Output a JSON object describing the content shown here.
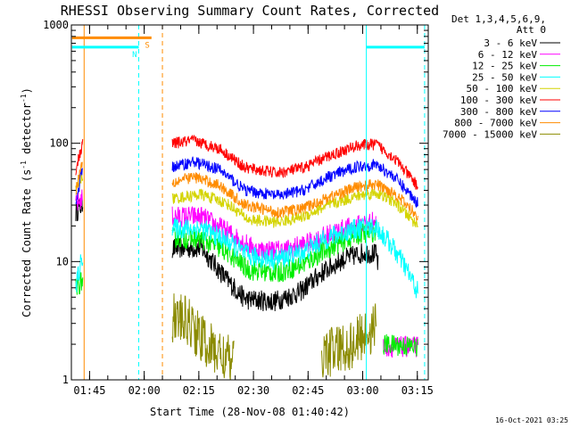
{
  "chart_data": {
    "type": "line",
    "title": "RHESSI Observing Summary Count Rates, Corrected",
    "xlabel": "Start Time (28-Nov-08 01:40:42)",
    "ylabel": "Corrected Count Rate (s",
    "ylabel_sup1": "-1",
    "ylabel_mid": " detector",
    "ylabel_sup2": "-1",
    "ylabel_end": ")",
    "y_scale": "log",
    "ylim": [
      1,
      1000
    ],
    "y_ticks": [
      {
        "value": 1,
        "label": "1"
      },
      {
        "value": 10,
        "label": "10"
      },
      {
        "value": 100,
        "label": "100"
      },
      {
        "value": 1000,
        "label": "1000"
      }
    ],
    "x_units": "minutes after 01:40:42",
    "xlim": [
      -0.7,
      97.3
    ],
    "x_ticks": [
      {
        "value": 4.3,
        "label": "01:45"
      },
      {
        "value": 19.3,
        "label": "02:00"
      },
      {
        "value": 34.3,
        "label": "02:15"
      },
      {
        "value": 49.3,
        "label": "02:30"
      },
      {
        "value": 64.3,
        "label": "02:45"
      },
      {
        "value": 79.3,
        "label": "03:00"
      },
      {
        "value": 94.3,
        "label": "03:15"
      }
    ],
    "legend_header": [
      "Det 1,3,4,5,6,9,",
      "Att 0"
    ],
    "legend_placement": "right",
    "series": [
      {
        "name": "3 - 6 keV",
        "color": "#000000",
        "segments": [
          [
            [
              0.5,
              26
            ],
            [
              2.5,
              31
            ]
          ],
          [
            [
              27,
              13
            ],
            [
              35,
              13
            ],
            [
              42,
              7
            ],
            [
              47,
              4.8
            ],
            [
              55,
              4.6
            ],
            [
              62,
              5.5
            ],
            [
              68,
              8
            ],
            [
              74,
              10.5
            ],
            [
              80,
              12
            ],
            [
              83,
              11.5
            ],
            [
              83.6,
              9
            ]
          ]
        ]
      },
      {
        "name": "6 - 12 keV",
        "color": "#ff00ff",
        "segments": [
          [
            [
              0.5,
              30
            ],
            [
              2.5,
              35
            ]
          ],
          [
            [
              27,
              24
            ],
            [
              35,
              24
            ],
            [
              42,
              18
            ],
            [
              50,
              12.5
            ],
            [
              58,
              12.5
            ],
            [
              65,
              14.5
            ],
            [
              72,
              18
            ],
            [
              80,
              21
            ],
            [
              83,
              22
            ]
          ],
          [
            [
              85,
              1.9
            ],
            [
              94.5,
              1.9
            ]
          ]
        ]
      },
      {
        "name": "12 - 25 keV",
        "color": "#00ee00",
        "segments": [
          [
            [
              0.5,
              6
            ],
            [
              2.5,
              7
            ]
          ],
          [
            [
              27,
              16
            ],
            [
              35,
              15.5
            ],
            [
              42,
              12
            ],
            [
              48,
              8.5
            ],
            [
              56,
              8
            ],
            [
              63,
              9.5
            ],
            [
              70,
              13
            ],
            [
              78,
              17
            ],
            [
              83,
              18
            ]
          ],
          [
            [
              85,
              2.0
            ],
            [
              94.5,
              1.9
            ]
          ]
        ]
      },
      {
        "name": "25 - 50 keV",
        "color": "#00ffff",
        "segments": [
          [
            [
              0.5,
              6
            ],
            [
              2.5,
              12
            ]
          ],
          [
            [
              27,
              19
            ],
            [
              35,
              19
            ],
            [
              42,
              15
            ],
            [
              48,
              11
            ],
            [
              56,
              10.5
            ],
            [
              63,
              12
            ],
            [
              70,
              16
            ],
            [
              78,
              19
            ],
            [
              83,
              19.5
            ],
            [
              87,
              14
            ],
            [
              91,
              9
            ],
            [
              94.5,
              5.5
            ]
          ]
        ]
      },
      {
        "name": "50 - 100 keV",
        "color": "#d4d400",
        "segments": [
          [
            [
              0.5,
              40
            ],
            [
              2.5,
              55
            ]
          ],
          [
            [
              27,
              34
            ],
            [
              35,
              37
            ],
            [
              42,
              31
            ],
            [
              48,
              22.5
            ],
            [
              56,
              21.5
            ],
            [
              63,
              24
            ],
            [
              70,
              30
            ],
            [
              78,
              36
            ],
            [
              83,
              38
            ],
            [
              88,
              32
            ],
            [
              94.5,
              20
            ]
          ]
        ]
      },
      {
        "name": "100 - 300 keV",
        "color": "#ff0000",
        "segments": [
          [
            [
              0.5,
              60
            ],
            [
              2.5,
              100
            ]
          ],
          [
            [
              27,
              100
            ],
            [
              33,
              105
            ],
            [
              40,
              90
            ],
            [
              47,
              62
            ],
            [
              56,
              56
            ],
            [
              63,
              62
            ],
            [
              70,
              78
            ],
            [
              78,
              96
            ],
            [
              83,
              98
            ],
            [
              88,
              75
            ],
            [
              94.5,
              43
            ]
          ]
        ]
      },
      {
        "name": "300 - 800 keV",
        "color": "#0000ff",
        "segments": [
          [
            [
              0.5,
              30
            ],
            [
              2.5,
              65
            ]
          ],
          [
            [
              27,
              63
            ],
            [
              33,
              70
            ],
            [
              40,
              60
            ],
            [
              47,
              40
            ],
            [
              56,
              36
            ],
            [
              63,
              40
            ],
            [
              70,
              52
            ],
            [
              78,
              64
            ],
            [
              83,
              66
            ],
            [
              88,
              52
            ],
            [
              94.5,
              31
            ]
          ]
        ]
      },
      {
        "name": "800 - 7000 keV",
        "color": "#ff8c00",
        "segments": [
          [
            [
              0.5,
              40
            ],
            [
              2.5,
              75
            ]
          ],
          [
            [
              27,
              47
            ],
            [
              33,
              52
            ],
            [
              40,
              44
            ],
            [
              47,
              30
            ],
            [
              56,
              26
            ],
            [
              63,
              28
            ],
            [
              70,
              35
            ],
            [
              78,
              43
            ],
            [
              83,
              45
            ],
            [
              88,
              38
            ],
            [
              94.5,
              24
            ]
          ]
        ]
      },
      {
        "name": "7000 - 15000 keV",
        "color": "#8b8b00",
        "segments": [
          [
            [
              27,
              3.4
            ],
            [
              32,
              3.0
            ],
            [
              35,
              2.2
            ],
            [
              38,
              1.8
            ],
            [
              41,
              1.6
            ],
            [
              44,
              1.3
            ]
          ],
          [
            [
              68,
              1.7
            ],
            [
              73,
              1.8
            ],
            [
              77,
              2.0
            ],
            [
              80,
              2.5
            ],
            [
              83,
              2.8
            ]
          ]
        ]
      }
    ],
    "flags": [
      {
        "label": "S",
        "color": "#ff8c00",
        "value": 780,
        "start": -0.5,
        "end": 21.3
      },
      {
        "label": "N",
        "color": "#00ffff",
        "value": 650,
        "start": -0.5,
        "end": 17.8
      },
      {
        "label": "",
        "color": "#00ffff",
        "value": 650,
        "start": 80.3,
        "end": 96.3
      }
    ],
    "marker_lines": [
      {
        "x": 2.8,
        "color": "#ff8c00",
        "style": "solid"
      },
      {
        "x": 17.8,
        "color": "#00ffff",
        "style": "dashed"
      },
      {
        "x": 24.3,
        "color": "#ff8c00",
        "style": "dashed"
      },
      {
        "x": 80.3,
        "color": "#00ffff",
        "style": "solid"
      },
      {
        "x": 96.3,
        "color": "#00ffff",
        "style": "dashed"
      }
    ],
    "grid": false
  },
  "footer": {
    "timestamp": "16-Oct-2021 03:25"
  }
}
